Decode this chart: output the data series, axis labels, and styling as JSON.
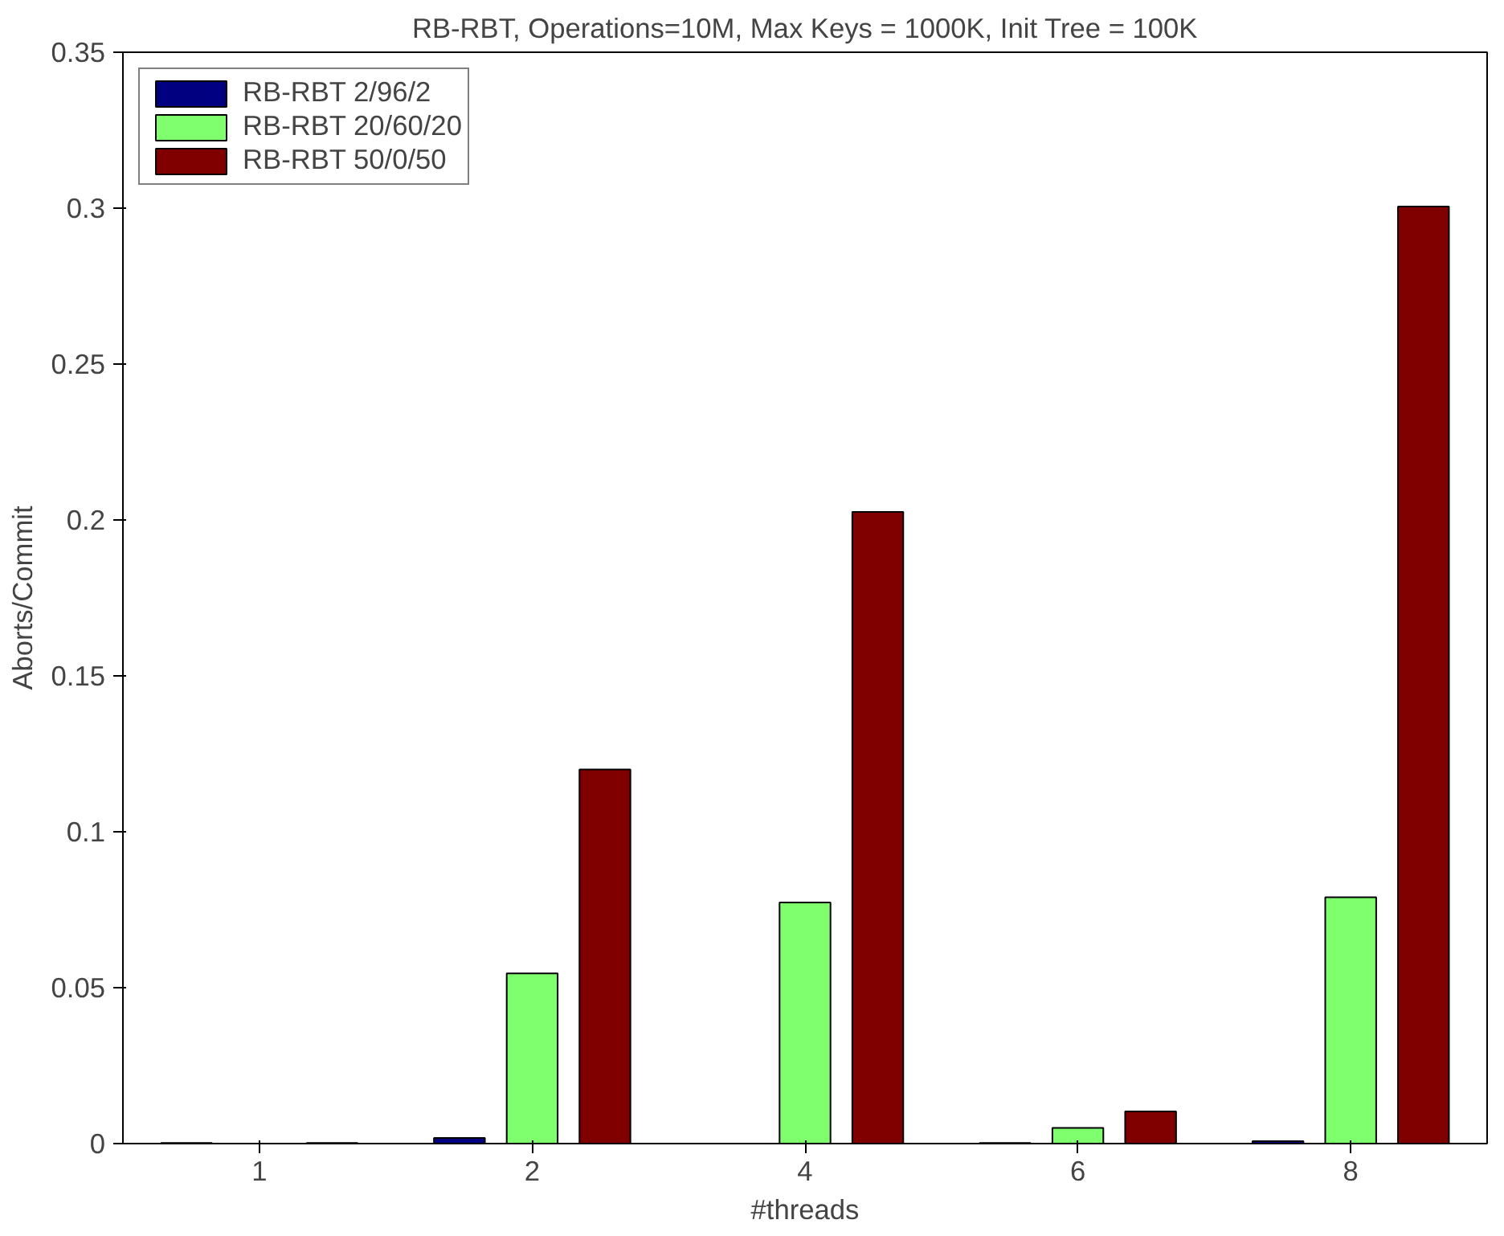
{
  "chart_data": {
    "type": "bar",
    "title": "RB-RBT, Operations=10M, Max Keys = 1000K, Init Tree = 100K",
    "xlabel": "#threads",
    "ylabel": "Aborts/Commit",
    "categories": [
      "1",
      "2",
      "4",
      "6",
      "8"
    ],
    "series": [
      {
        "name": "RB-RBT 2/96/2",
        "color": "#000080",
        "values": [
          0.0002,
          0.0018,
          null,
          0.0002,
          0.0008
        ]
      },
      {
        "name": "RB-RBT 20/60/20",
        "color": "#80ff6e",
        "values": [
          null,
          0.0546,
          0.0773,
          0.005,
          0.079
        ]
      },
      {
        "name": "RB-RBT 50/0/50",
        "color": "#800000",
        "values": [
          0.0002,
          0.12,
          0.2026,
          0.0103,
          0.3005
        ]
      }
    ],
    "ylim": [
      0,
      0.35
    ],
    "yticks": [
      0,
      0.05,
      0.1,
      0.15,
      0.2,
      0.25,
      0.3,
      0.35
    ],
    "grid": false,
    "legend": "top left"
  }
}
